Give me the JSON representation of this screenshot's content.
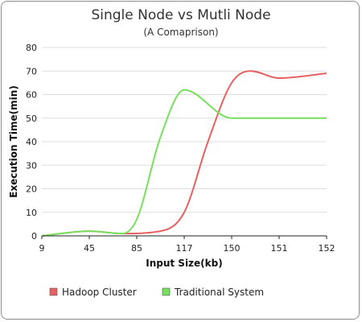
{
  "chart_data": {
    "type": "line",
    "title": "Single Node vs Mutli Node",
    "subtitle": "(A Comaprison)",
    "xlabel": "Input Size(kb)",
    "ylabel": "Execution Time(min)",
    "categories": [
      "9",
      "45",
      "85",
      "117",
      "150",
      "151",
      "152"
    ],
    "ylim": [
      0,
      80
    ],
    "yticks": [
      0,
      10,
      20,
      30,
      40,
      50,
      60,
      70,
      80
    ],
    "grid": "horizontal",
    "legend_position": "bottom-left",
    "smooth": true,
    "series": [
      {
        "name": "Hadoop Cluster",
        "color": "#e86161",
        "points": [
          [
            0,
            0
          ],
          [
            1,
            2
          ],
          [
            1.7,
            1
          ],
          [
            2.5,
            2
          ],
          [
            3,
            10
          ],
          [
            3.5,
            40
          ],
          [
            4,
            65
          ],
          [
            4.4,
            70
          ],
          [
            5,
            67
          ],
          [
            6,
            69
          ]
        ]
      },
      {
        "name": "Traditional System",
        "color": "#77e05f",
        "points": [
          [
            0,
            0
          ],
          [
            1,
            2
          ],
          [
            1.7,
            1
          ],
          [
            2,
            7
          ],
          [
            2.5,
            42
          ],
          [
            3,
            62
          ],
          [
            4,
            50
          ],
          [
            5,
            50
          ],
          [
            6,
            50
          ]
        ]
      }
    ]
  }
}
